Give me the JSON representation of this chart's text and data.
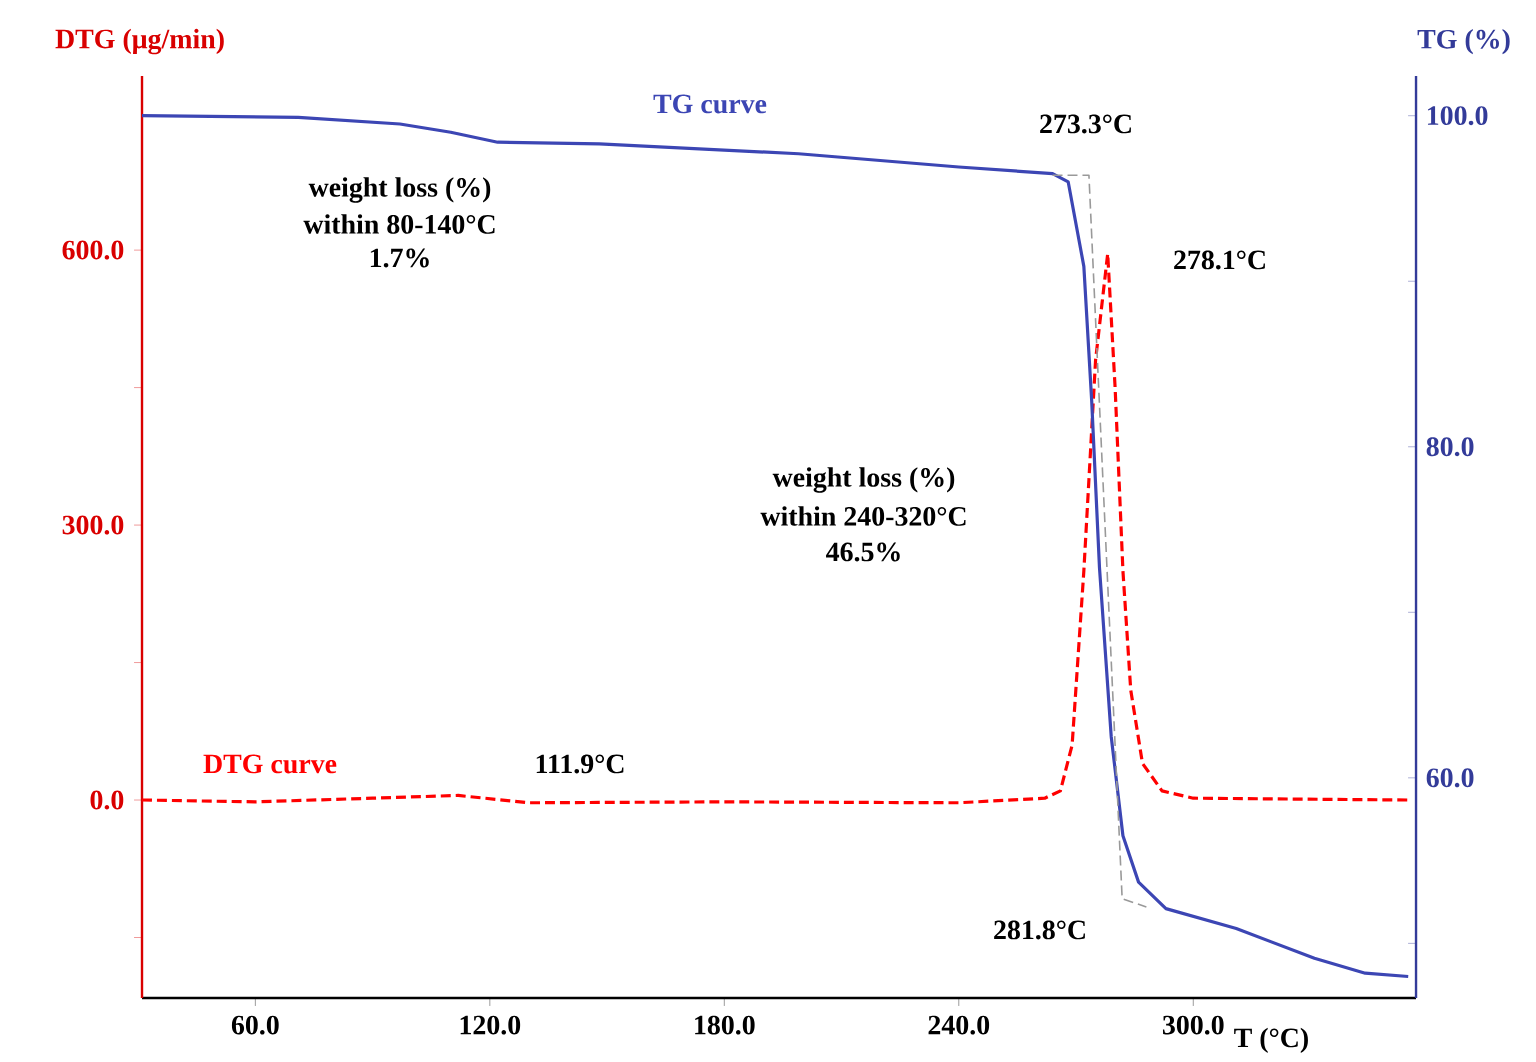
{
  "chart_data": {
    "type": "line",
    "xlabel": "T (°C)",
    "ylabel": "DTG (μg/min)",
    "y2label": "TG (%)",
    "xlim": [
      31,
      357
    ],
    "xticks": [
      {
        "value": 60,
        "label": "60.0"
      },
      {
        "value": 120,
        "label": "120.0"
      },
      {
        "value": 180,
        "label": "180.0"
      },
      {
        "value": 240,
        "label": "240.0"
      },
      {
        "value": 300,
        "label": "300.0"
      }
    ],
    "ylim": [
      -216,
      790
    ],
    "yticks": [
      {
        "value": -150,
        "label": null
      },
      {
        "value": 0,
        "label": "0.0"
      },
      {
        "value": 150,
        "label": null
      },
      {
        "value": 300,
        "label": "300.0"
      },
      {
        "value": 450,
        "label": null
      },
      {
        "value": 600,
        "label": "600.0"
      }
    ],
    "y2lim": [
      46.7,
      102.4
    ],
    "y2ticks": [
      {
        "value": 50,
        "label": null
      },
      {
        "value": 60,
        "label": "60.0"
      },
      {
        "value": 70,
        "label": null
      },
      {
        "value": 80,
        "label": "80.0"
      },
      {
        "value": 90,
        "label": null
      },
      {
        "value": 100,
        "label": "100.0"
      }
    ],
    "grid": false,
    "series": [
      {
        "name": "TG curve",
        "color": "#3c46b4",
        "axis": "y2",
        "line_style": "solid",
        "x": [
          31,
          71,
          97,
          110,
          122,
          148,
          199,
          240,
          264,
          268,
          272,
          274,
          276,
          279,
          282,
          286,
          293,
          311,
          331,
          344,
          355
        ],
        "values": [
          100,
          99.9,
          99.5,
          99.0,
          98.4,
          98.3,
          97.7,
          96.9,
          96.5,
          96.0,
          90.9,
          82.8,
          72.7,
          62.5,
          56.5,
          53.7,
          52.1,
          50.9,
          49.1,
          48.2,
          48.0
        ]
      },
      {
        "name": "DTG curve",
        "color": "#ff0000",
        "axis": "y",
        "line_style": "dashed",
        "x": [
          31,
          60,
          90,
          111.9,
          130,
          180,
          240,
          262,
          266,
          269,
          272,
          275,
          278.1,
          280,
          282,
          284,
          287,
          292,
          300,
          355
        ],
        "values": [
          0,
          -2,
          2,
          5,
          -3,
          -2,
          -3,
          2,
          10,
          60,
          250,
          480,
          596,
          450,
          250,
          120,
          40,
          10,
          2,
          0
        ]
      },
      {
        "color": "#999999",
        "axis": "y2",
        "line_style": "dashed",
        "x": [
          264,
          273.3,
          281.8,
          288
        ],
        "values": [
          96.4,
          96.4,
          52.7,
          52.2
        ]
      }
    ],
    "annotations": [
      "weight loss (%)",
      "within 80-140°C",
      "1.7%",
      "weight loss (%)",
      "within 240-320°C",
      "46.5%",
      "273.3°C",
      "278.1°C",
      "111.9°C",
      "281.8°C"
    ]
  }
}
